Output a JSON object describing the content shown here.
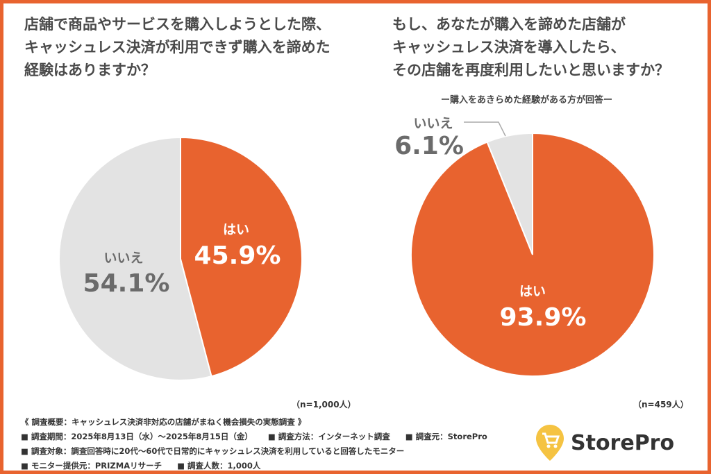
{
  "chart_data": [
    {
      "type": "pie",
      "title": "店舗で商品やサービスを購入しようとした際、\nキャッシュレス決済が利用できず購入を諦めた\n経験はありますか？",
      "slices": [
        {
          "label": "はい",
          "value": 45.9,
          "color": "#e8632f"
        },
        {
          "label": "いいえ",
          "value": 54.1,
          "color": "#e3e3e3"
        }
      ],
      "sample": "（n=1,000人）"
    },
    {
      "type": "pie",
      "title": "もし、あなたが購入を諦めた店舗が\nキャッシュレス決済を導入したら、\nその店舗を再度利用したいと思いますか？",
      "subtitle": "ー購入をあきらめた経験がある方が回答ー",
      "slices": [
        {
          "label": "はい",
          "value": 93.9,
          "color": "#e8632f"
        },
        {
          "label": "いいえ",
          "value": 6.1,
          "color": "#e3e3e3"
        }
      ],
      "sample": "（n=459人）"
    }
  ],
  "labels": {
    "c1_yes": "はい",
    "c1_yes_pct": "45.9%",
    "c1_no": "いいえ",
    "c1_no_pct": "54.1%",
    "c2_yes": "はい",
    "c2_yes_pct": "93.9%",
    "c2_no": "いいえ",
    "c2_no_pct": "6.1%"
  },
  "footer": {
    "overview": "《 調査概要：キャッシュレス決済非対応の店舗がまねく機会損失の実態調査 》",
    "period": "■ 調査期間：2025年8月13日（水）～2025年8月15日（金）",
    "method": "■ 調査方法：インターネット調査",
    "source": "■ 調査元：StorePro",
    "target": "■ 調査対象：調査回答時に20代～60代で日常的にキャッシュレス決済を利用していると回答したモニター",
    "provider": "■ モニター提供元：PRIZMAリサーチ",
    "count": "■ 調査人数：1,000人"
  },
  "logo": {
    "text": "StorePro",
    "color": "#f5c342"
  }
}
